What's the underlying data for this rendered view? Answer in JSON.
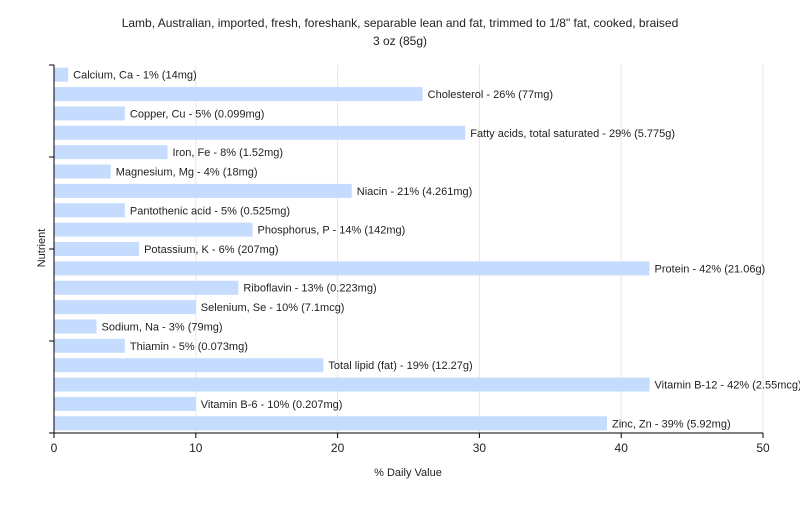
{
  "chart_data": {
    "type": "bar",
    "orientation": "horizontal",
    "title": "Lamb, Australian, imported, fresh, foreshank, separable lean and fat, trimmed to 1/8\" fat, cooked, braised",
    "subtitle": "3 oz (85g)",
    "xlabel": "% Daily Value",
    "ylabel": "Nutrient",
    "xlim": [
      0,
      50
    ],
    "xticks": [
      0,
      10,
      20,
      30,
      40,
      50
    ],
    "grid": true,
    "bar_color": "#c5dcff",
    "categories": [
      "Calcium, Ca",
      "Cholesterol",
      "Copper, Cu",
      "Fatty acids, total saturated",
      "Iron, Fe",
      "Magnesium, Mg",
      "Niacin",
      "Pantothenic acid",
      "Phosphorus, P",
      "Potassium, K",
      "Protein",
      "Riboflavin",
      "Selenium, Se",
      "Sodium, Na",
      "Thiamin",
      "Total lipid (fat)",
      "Vitamin B-12",
      "Vitamin B-6",
      "Zinc, Zn"
    ],
    "values": [
      1,
      26,
      5,
      29,
      8,
      4,
      21,
      5,
      14,
      6,
      42,
      13,
      10,
      3,
      5,
      19,
      42,
      10,
      39
    ],
    "labels": [
      "Calcium, Ca - 1% (14mg)",
      "Cholesterol - 26% (77mg)",
      "Copper, Cu - 5% (0.099mg)",
      "Fatty acids, total saturated - 29% (5.775g)",
      "Iron, Fe - 8% (1.52mg)",
      "Magnesium, Mg - 4% (18mg)",
      "Niacin - 21% (4.261mg)",
      "Pantothenic acid - 5% (0.525mg)",
      "Phosphorus, P - 14% (142mg)",
      "Potassium, K - 6% (207mg)",
      "Protein - 42% (21.06g)",
      "Riboflavin - 13% (0.223mg)",
      "Selenium, Se - 10% (7.1mcg)",
      "Sodium, Na - 3% (79mg)",
      "Thiamin - 5% (0.073mg)",
      "Total lipid (fat) - 19% (12.27g)",
      "Vitamin B-12 - 42% (2.55mcg)",
      "Vitamin B-6 - 10% (0.207mg)",
      "Zinc, Zn - 39% (5.92mg)"
    ]
  }
}
